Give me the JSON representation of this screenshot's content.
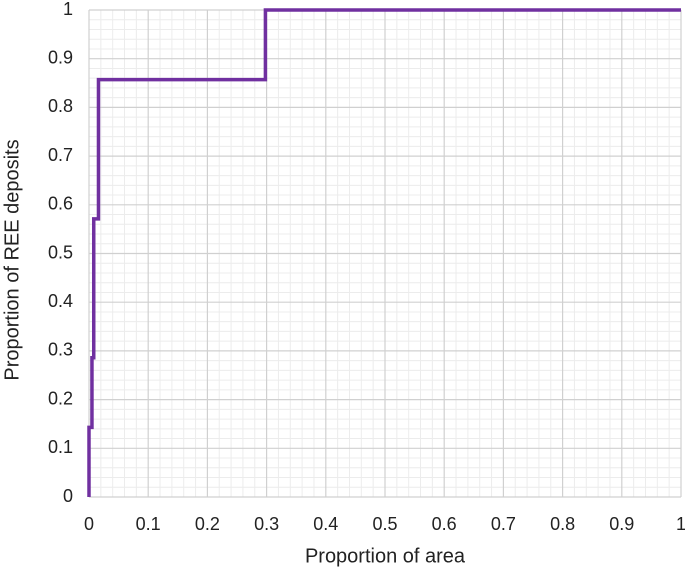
{
  "chart_data": {
    "type": "line",
    "xlabel": "Proportion of area",
    "ylabel": "Proportion of REE deposits",
    "series": [
      {
        "color": "#7030a0",
        "x": [
          0,
          0,
          0.005,
          0.005,
          0.008,
          0.008,
          0.016,
          0.016,
          0.298,
          0.298,
          1
        ],
        "values": [
          0,
          0.143,
          0.143,
          0.286,
          0.286,
          0.571,
          0.571,
          0.857,
          0.857,
          1,
          1
        ]
      }
    ],
    "xlim": [
      0,
      1
    ],
    "ylim": [
      0,
      1
    ],
    "xticks": [
      0,
      0.1,
      0.2,
      0.3,
      0.4,
      0.5,
      0.6,
      0.7,
      0.8,
      0.9,
      1
    ],
    "yticks": [
      0,
      0.1,
      0.2,
      0.3,
      0.4,
      0.5,
      0.6,
      0.7,
      0.8,
      0.9,
      1
    ],
    "grid": true,
    "minor_subdivisions": 5
  }
}
